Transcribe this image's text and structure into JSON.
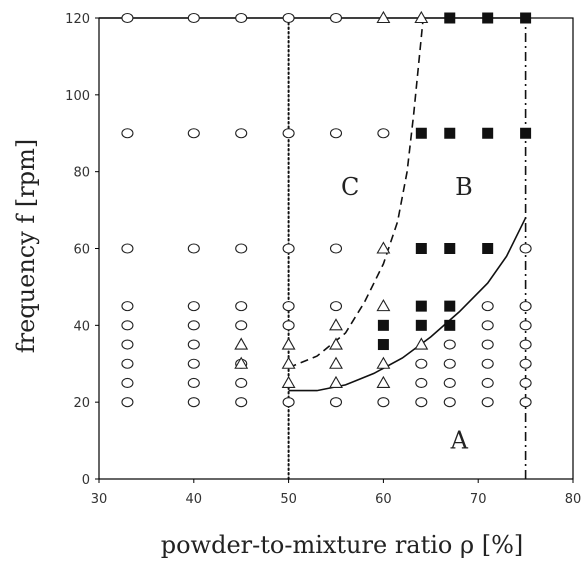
{
  "chart_data": {
    "type": "scatter",
    "xlabel": "powder-to-mixture ratio ρ [%]",
    "ylabel": "frequency f [rpm]",
    "xlim": [
      30,
      80
    ],
    "ylim": [
      0,
      120
    ],
    "xticks": [
      30,
      40,
      50,
      60,
      70,
      80
    ],
    "yticks": [
      0,
      20,
      40,
      60,
      80,
      100,
      120
    ],
    "xtick_labels": [
      "30",
      "40",
      "50",
      "60",
      "70",
      "80"
    ],
    "ytick_labels": [
      "0",
      "20",
      "40",
      "60",
      "80",
      "100",
      "120"
    ],
    "grid": false,
    "series": [
      {
        "marker": "circle",
        "points": [
          [
            33,
            20
          ],
          [
            33,
            25
          ],
          [
            33,
            30
          ],
          [
            33,
            35
          ],
          [
            33,
            40
          ],
          [
            33,
            45
          ],
          [
            33,
            60
          ],
          [
            33,
            90
          ],
          [
            33,
            120
          ],
          [
            40,
            20
          ],
          [
            40,
            25
          ],
          [
            40,
            30
          ],
          [
            40,
            35
          ],
          [
            40,
            40
          ],
          [
            40,
            45
          ],
          [
            40,
            60
          ],
          [
            40,
            90
          ],
          [
            40,
            120
          ],
          [
            45,
            20
          ],
          [
            45,
            25
          ],
          [
            45,
            30
          ],
          [
            45,
            40
          ],
          [
            45,
            45
          ],
          [
            45,
            60
          ],
          [
            45,
            90
          ],
          [
            45,
            120
          ],
          [
            50,
            20
          ],
          [
            50,
            40
          ],
          [
            50,
            45
          ],
          [
            50,
            60
          ],
          [
            50,
            90
          ],
          [
            50,
            120
          ],
          [
            55,
            20
          ],
          [
            55,
            45
          ],
          [
            55,
            60
          ],
          [
            55,
            90
          ],
          [
            55,
            120
          ],
          [
            60,
            20
          ],
          [
            60,
            90
          ],
          [
            64,
            20
          ],
          [
            64,
            25
          ],
          [
            64,
            30
          ],
          [
            67,
            20
          ],
          [
            67,
            25
          ],
          [
            67,
            30
          ],
          [
            67,
            35
          ],
          [
            71,
            20
          ],
          [
            71,
            25
          ],
          [
            71,
            30
          ],
          [
            71,
            35
          ],
          [
            71,
            40
          ],
          [
            71,
            45
          ],
          [
            75,
            20
          ],
          [
            75,
            25
          ],
          [
            75,
            30
          ],
          [
            75,
            35
          ],
          [
            75,
            40
          ],
          [
            75,
            45
          ],
          [
            75,
            60
          ]
        ]
      },
      {
        "marker": "triangle",
        "points": [
          [
            45,
            30
          ],
          [
            45,
            35
          ],
          [
            50,
            25
          ],
          [
            50,
            30
          ],
          [
            50,
            35
          ],
          [
            55,
            25
          ],
          [
            55,
            30
          ],
          [
            55,
            35
          ],
          [
            55,
            40
          ],
          [
            60,
            25
          ],
          [
            60,
            30
          ],
          [
            60,
            45
          ],
          [
            60,
            60
          ],
          [
            60,
            120
          ],
          [
            64,
            35
          ],
          [
            64,
            120
          ]
        ]
      },
      {
        "marker": "filled-square",
        "points": [
          [
            60,
            35
          ],
          [
            60,
            40
          ],
          [
            64,
            40
          ],
          [
            64,
            45
          ],
          [
            64,
            60
          ],
          [
            64,
            90
          ],
          [
            67,
            40
          ],
          [
            67,
            45
          ],
          [
            67,
            60
          ],
          [
            67,
            90
          ],
          [
            67,
            120
          ],
          [
            71,
            60
          ],
          [
            71,
            90
          ],
          [
            71,
            120
          ],
          [
            75,
            90
          ],
          [
            75,
            120
          ]
        ]
      }
    ],
    "lines": [
      {
        "style": "solid",
        "points": [
          [
            30,
            120
          ],
          [
            75,
            120
          ]
        ]
      },
      {
        "style": "solid",
        "points": [
          [
            50,
            23
          ],
          [
            53,
            23
          ],
          [
            56,
            24.5
          ],
          [
            59,
            27.5
          ],
          [
            62,
            31.5
          ],
          [
            65,
            37
          ],
          [
            68,
            43.5
          ],
          [
            71,
            51
          ],
          [
            73,
            58
          ],
          [
            75,
            68
          ]
        ]
      },
      {
        "style": "dashed",
        "points": [
          [
            50,
            29
          ],
          [
            53,
            32
          ],
          [
            56,
            38
          ],
          [
            58,
            46
          ],
          [
            60,
            56
          ],
          [
            61.5,
            67
          ],
          [
            62.5,
            80
          ],
          [
            63.2,
            95
          ],
          [
            63.8,
            110
          ],
          [
            64.2,
            120
          ]
        ]
      },
      {
        "style": "dotted",
        "points": [
          [
            50,
            0
          ],
          [
            50,
            120
          ]
        ]
      },
      {
        "style": "dashdot",
        "points": [
          [
            75,
            0
          ],
          [
            75,
            120
          ]
        ]
      }
    ],
    "annotations": [
      {
        "text": "A",
        "x": 68,
        "y": 10
      },
      {
        "text": "B",
        "x": 68.5,
        "y": 76
      },
      {
        "text": "C",
        "x": 56.5,
        "y": 76
      }
    ]
  }
}
